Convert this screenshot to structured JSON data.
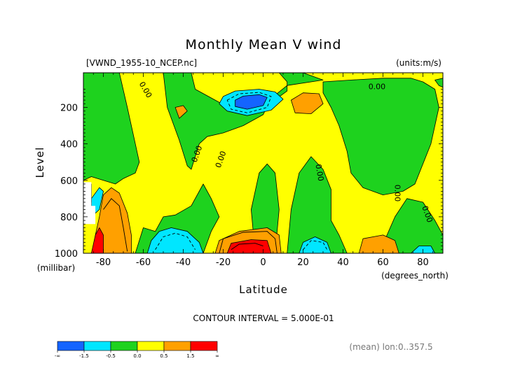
{
  "chart_data": {
    "type": "heatmap",
    "title": "Monthly Mean V wind",
    "file_label": "[VWND_1955-10_NCEP.nc]",
    "units_label": "(units:m/s)",
    "xlabel": "Latitude",
    "x_units": "(degrees_north)",
    "ylabel": "Level",
    "y_units": "(millibar)",
    "xlim": [
      -90,
      90
    ],
    "ylim": [
      1000,
      10
    ],
    "y_reversed": true,
    "x_ticks": [
      -80,
      -60,
      -40,
      -20,
      0,
      20,
      40,
      60,
      80
    ],
    "y_ticks": [
      200,
      400,
      600,
      800,
      1000
    ],
    "contour_interval": "CONTOUR INTERVAL = 5.000E-01",
    "contour_label": "0.00",
    "footer": "(mean) lon:0..357.5",
    "colorbar": {
      "tick_labels": [
        "-∞",
        "-1.5",
        "-0.5",
        "0.0",
        "0.5",
        "1.5",
        "∞"
      ],
      "colors": [
        "#1464ff",
        "#00e6ff",
        "#1ed21e",
        "#ffff00",
        "#ffa000",
        "#ff0000"
      ]
    },
    "regions": [
      {
        "level": "negative_weak",
        "color": "#1ed21e",
        "polygon": [
          [
            -90,
            10
          ],
          [
            -72,
            10
          ],
          [
            -68,
            200
          ],
          [
            -64,
            400
          ],
          [
            -62,
            500
          ],
          [
            -64,
            560
          ],
          [
            -70,
            590
          ],
          [
            -74,
            620
          ],
          [
            -80,
            600
          ],
          [
            -86,
            580
          ],
          [
            -90,
            600
          ]
        ]
      },
      {
        "level": "negative_weak",
        "color": "#1ed21e",
        "polygon": [
          [
            -50,
            10
          ],
          [
            -36,
            10
          ],
          [
            -34,
            100
          ],
          [
            -24,
            160
          ],
          [
            -14,
            220
          ],
          [
            2,
            190
          ],
          [
            12,
            110
          ],
          [
            12,
            60
          ],
          [
            8,
            10
          ],
          [
            20,
            10
          ],
          [
            30,
            50
          ],
          [
            12,
            80
          ],
          [
            4,
            150
          ],
          [
            0,
            240
          ],
          [
            -10,
            300
          ],
          [
            -20,
            340
          ],
          [
            -28,
            360
          ],
          [
            -32,
            400
          ],
          [
            -36,
            540
          ],
          [
            -38,
            520
          ],
          [
            -42,
            380
          ],
          [
            -48,
            200
          ]
        ]
      },
      {
        "level": "negative_weak",
        "color": "#1ed21e",
        "polygon": [
          [
            30,
            60
          ],
          [
            44,
            50
          ],
          [
            60,
            40
          ],
          [
            74,
            40
          ],
          [
            80,
            60
          ],
          [
            86,
            100
          ],
          [
            88,
            200
          ],
          [
            84,
            400
          ],
          [
            76,
            620
          ],
          [
            70,
            660
          ],
          [
            60,
            680
          ],
          [
            50,
            640
          ],
          [
            44,
            560
          ],
          [
            42,
            440
          ],
          [
            38,
            300
          ],
          [
            34,
            200
          ],
          [
            30,
            120
          ]
        ]
      },
      {
        "level": "negative_weak",
        "color": "#1ed21e",
        "polygon": [
          [
            -36,
            740
          ],
          [
            -30,
            620
          ],
          [
            -26,
            700
          ],
          [
            -22,
            800
          ],
          [
            -26,
            880
          ],
          [
            -30,
            1000
          ],
          [
            -64,
            1000
          ],
          [
            -60,
            860
          ],
          [
            -54,
            880
          ],
          [
            -50,
            800
          ],
          [
            -44,
            790
          ]
        ]
      },
      {
        "level": "negative_weak",
        "color": "#1ed21e",
        "polygon": [
          [
            -4,
            1000
          ],
          [
            -6,
            760
          ],
          [
            -2,
            560
          ],
          [
            2,
            510
          ],
          [
            6,
            560
          ],
          [
            8,
            760
          ],
          [
            6,
            1000
          ]
        ]
      },
      {
        "level": "negative_weak",
        "color": "#1ed21e",
        "polygon": [
          [
            12,
            1000
          ],
          [
            14,
            760
          ],
          [
            18,
            560
          ],
          [
            24,
            470
          ],
          [
            30,
            540
          ],
          [
            34,
            650
          ],
          [
            34,
            820
          ],
          [
            38,
            900
          ],
          [
            42,
            1000
          ]
        ]
      },
      {
        "level": "negative_weak",
        "color": "#1ed21e",
        "polygon": [
          [
            58,
            1000
          ],
          [
            66,
            800
          ],
          [
            72,
            700
          ],
          [
            80,
            720
          ],
          [
            86,
            820
          ],
          [
            90,
            900
          ],
          [
            90,
            1000
          ]
        ]
      },
      {
        "level": "negative_weak",
        "color": "#1ed21e",
        "polygon": [
          [
            86,
            50
          ],
          [
            90,
            40
          ],
          [
            90,
            90
          ],
          [
            88,
            80
          ]
        ]
      },
      {
        "level": "negative_strong",
        "color": "#00e6ff",
        "polygon": [
          [
            -20,
            140
          ],
          [
            -14,
            110
          ],
          [
            -2,
            100
          ],
          [
            6,
            115
          ],
          [
            10,
            155
          ],
          [
            4,
            215
          ],
          [
            -8,
            245
          ],
          [
            -18,
            220
          ],
          [
            -22,
            180
          ]
        ]
      },
      {
        "level": "negative_max",
        "color": "#1464ff",
        "polygon": [
          [
            -14,
            160
          ],
          [
            -10,
            138
          ],
          [
            -2,
            130
          ],
          [
            2,
            145
          ],
          [
            0,
            190
          ],
          [
            -8,
            210
          ],
          [
            -14,
            195
          ]
        ]
      },
      {
        "level": "negative_strong",
        "color": "#00e6ff",
        "polygon": [
          [
            -58,
            1000
          ],
          [
            -56,
            930
          ],
          [
            -52,
            880
          ],
          [
            -46,
            860
          ],
          [
            -38,
            880
          ],
          [
            -32,
            940
          ],
          [
            -30,
            1000
          ]
        ]
      },
      {
        "level": "negative_strong",
        "color": "#00e6ff",
        "polygon": [
          [
            18,
            1000
          ],
          [
            20,
            940
          ],
          [
            26,
            910
          ],
          [
            32,
            940
          ],
          [
            34,
            1000
          ]
        ]
      },
      {
        "level": "negative_strong",
        "color": "#00e6ff",
        "polygon": [
          [
            74,
            1000
          ],
          [
            78,
            960
          ],
          [
            84,
            960
          ],
          [
            86,
            1000
          ]
        ]
      },
      {
        "level": "negative_strong",
        "color": "#00e6ff",
        "polygon": [
          [
            -86,
            700
          ],
          [
            -82,
            640
          ],
          [
            -80,
            660
          ],
          [
            -82,
            760
          ],
          [
            -84,
            780
          ],
          [
            -86,
            760
          ]
        ]
      },
      {
        "level": "negative_max",
        "color": "#1464ff",
        "polygon": [
          [
            -90,
            630
          ],
          [
            -86,
            620
          ],
          [
            -86,
            720
          ],
          [
            -90,
            720
          ]
        ]
      },
      {
        "level": "positive_weak",
        "color": "#ffa000",
        "polygon": [
          [
            -80,
            680
          ],
          [
            -76,
            640
          ],
          [
            -72,
            670
          ],
          [
            -68,
            780
          ],
          [
            -66,
            900
          ],
          [
            -66,
            1000
          ],
          [
            -80,
            1000
          ],
          [
            -84,
            900
          ],
          [
            -82,
            800
          ]
        ]
      },
      {
        "level": "positive_strong",
        "color": "#ff0000",
        "polygon": [
          [
            -84,
            900
          ],
          [
            -82,
            860
          ],
          [
            -80,
            900
          ],
          [
            -80,
            1000
          ],
          [
            -86,
            1000
          ]
        ]
      },
      {
        "level": "positive_weak",
        "color": "#ffa000",
        "polygon": [
          [
            -24,
            1000
          ],
          [
            -22,
            930
          ],
          [
            -12,
            880
          ],
          [
            2,
            860
          ],
          [
            8,
            900
          ],
          [
            9,
            1000
          ]
        ]
      },
      {
        "level": "positive_strong",
        "color": "#ff0000",
        "polygon": [
          [
            -18,
            1000
          ],
          [
            -16,
            945
          ],
          [
            -6,
            925
          ],
          [
            2,
            930
          ],
          [
            4,
            1000
          ]
        ]
      },
      {
        "level": "positive_weak",
        "color": "#ffa000",
        "polygon": [
          [
            14,
            160
          ],
          [
            20,
            120
          ],
          [
            28,
            125
          ],
          [
            30,
            180
          ],
          [
            24,
            235
          ],
          [
            16,
            230
          ]
        ]
      },
      {
        "level": "positive_weak",
        "color": "#ffa000",
        "polygon": [
          [
            -44,
            200
          ],
          [
            -40,
            190
          ],
          [
            -38,
            220
          ],
          [
            -42,
            260
          ]
        ]
      },
      {
        "level": "positive_weak",
        "color": "#ffa000",
        "polygon": [
          [
            48,
            1000
          ],
          [
            50,
            920
          ],
          [
            60,
            900
          ],
          [
            66,
            930
          ],
          [
            68,
            1000
          ]
        ]
      },
      {
        "level": "missing",
        "color": "#ffffff",
        "polygon": [
          [
            -90,
            610
          ],
          [
            -86,
            610
          ],
          [
            -86,
            740
          ],
          [
            -84,
            740
          ],
          [
            -84,
            840
          ],
          [
            -90,
            840
          ]
        ]
      }
    ],
    "contours": [
      {
        "style": "dashed",
        "points": [
          [
            -18,
            160
          ],
          [
            -12,
            125
          ],
          [
            -2,
            118
          ],
          [
            4,
            140
          ],
          [
            2,
            200
          ],
          [
            -8,
            230
          ],
          [
            -16,
            210
          ],
          [
            -18,
            160
          ]
        ]
      },
      {
        "style": "dashed",
        "points": [
          [
            -54,
            980
          ],
          [
            -50,
            910
          ],
          [
            -44,
            890
          ],
          [
            -38,
            910
          ],
          [
            -34,
            980
          ]
        ]
      },
      {
        "style": "dashed",
        "points": [
          [
            20,
            980
          ],
          [
            24,
            930
          ],
          [
            30,
            940
          ],
          [
            32,
            980
          ]
        ]
      },
      {
        "style": "solid",
        "points": [
          [
            -22,
            1000
          ],
          [
            -20,
            920
          ],
          [
            -10,
            885
          ],
          [
            2,
            880
          ],
          [
            6,
            920
          ],
          [
            7,
            1000
          ]
        ]
      },
      {
        "style": "solid",
        "points": [
          [
            -16,
            980
          ],
          [
            -12,
            950
          ],
          [
            -4,
            945
          ],
          [
            0,
            960
          ]
        ]
      },
      {
        "style": "solid",
        "points": [
          [
            -80,
            760
          ],
          [
            -76,
            700
          ],
          [
            -72,
            740
          ],
          [
            -70,
            860
          ],
          [
            -68,
            990
          ]
        ]
      }
    ],
    "contour_labels": [
      {
        "x": -60,
        "y": 110,
        "rotate": 60
      },
      {
        "x": -32,
        "y": 460,
        "rotate": -70
      },
      {
        "x": -20,
        "y": 490,
        "rotate": -70
      },
      {
        "x": 27,
        "y": 560,
        "rotate": 80
      },
      {
        "x": 57,
        "y": 100,
        "rotate": 0
      },
      {
        "x": 66,
        "y": 670,
        "rotate": 90
      },
      {
        "x": 81,
        "y": 790,
        "rotate": 70
      }
    ]
  }
}
